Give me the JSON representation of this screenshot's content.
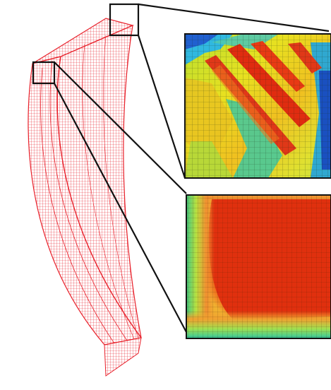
{
  "figure": {
    "mesh_color": "#e8202a",
    "callout_color": "#111111",
    "panels": [
      {
        "id": "top-detail",
        "description_visible_text": ""
      },
      {
        "id": "bottom-detail",
        "description_visible_text": ""
      }
    ]
  }
}
